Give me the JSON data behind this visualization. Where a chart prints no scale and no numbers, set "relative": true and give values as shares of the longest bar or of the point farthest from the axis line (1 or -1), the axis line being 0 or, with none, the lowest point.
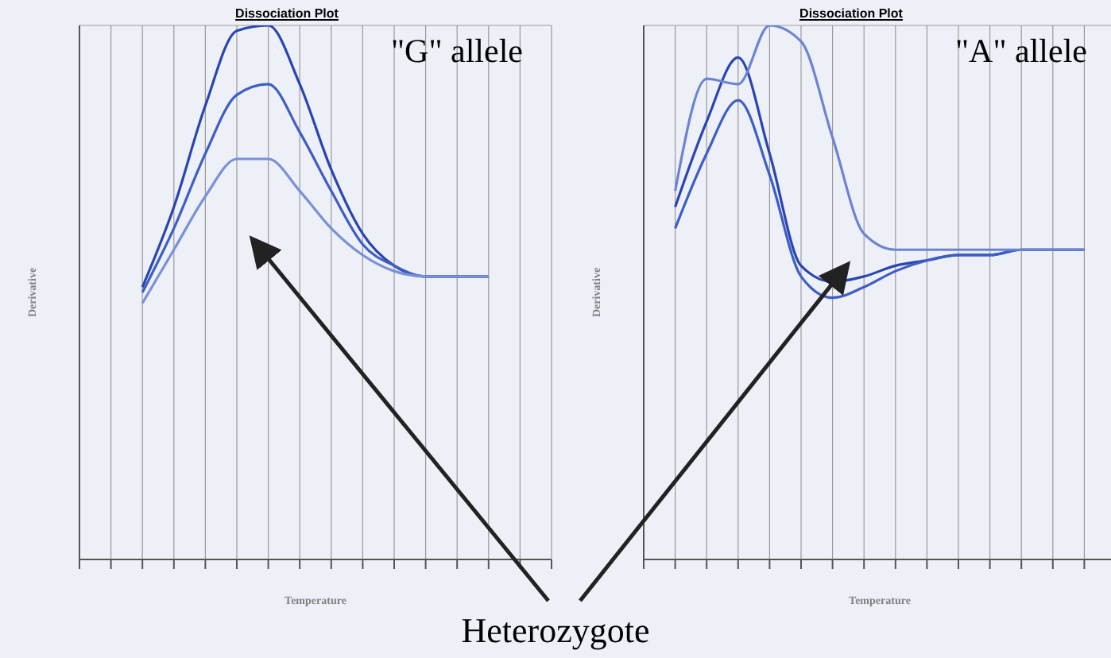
{
  "chart_data": [
    {
      "type": "line",
      "title": "Dissociation Plot",
      "xlabel": "Temperature",
      "ylabel": "Derivative",
      "annotations": [
        "\"G\" allele",
        "Heterozygote"
      ],
      "relative": true,
      "grid": true,
      "marker": "none",
      "categories": [
        null,
        null,
        null,
        null,
        null,
        null,
        null,
        null,
        null,
        null,
        null,
        null,
        null,
        null,
        null,
        null
      ],
      "series": [
        {
          "color": "#2a45b0",
          "values": [
            null,
            null,
            0.51,
            0.66,
            0.85,
            0.99,
            1,
            0.89,
            0.73,
            0.61,
            0.55,
            0.53,
            0.53,
            0.53,
            null,
            null
          ]
        },
        {
          "color": "#3d5ec4",
          "values": [
            null,
            null,
            0.5,
            0.62,
            0.76,
            0.87,
            0.89,
            0.8,
            0.69,
            0.59,
            0.55,
            0.53,
            0.53,
            0.53,
            null,
            null
          ]
        },
        {
          "color": "#7890d6",
          "values": [
            null,
            null,
            0.48,
            0.58,
            0.68,
            0.75,
            0.75,
            0.69,
            0.62,
            0.57,
            0.54,
            0.53,
            0.53,
            0.53,
            null,
            null
          ]
        }
      ]
    },
    {
      "type": "line",
      "title": "Dissociation Plot",
      "xlabel": "Temperature",
      "ylabel": "Derivative",
      "annotations": [
        "\"A\" allele"
      ],
      "relative": true,
      "grid": true,
      "marker": "none",
      "categories": [
        null,
        null,
        null,
        null,
        null,
        null,
        null,
        null,
        null,
        null,
        null,
        null,
        null,
        null,
        null,
        null
      ],
      "series": [
        {
          "color": "#2a45b0",
          "values": [
            null,
            0.66,
            0.82,
            0.94,
            0.76,
            0.55,
            0.52,
            0.53,
            0.55,
            0.56,
            0.57,
            0.57,
            0.58,
            0.58,
            0.58,
            null
          ]
        },
        {
          "color": "#3d5ec4",
          "values": [
            null,
            0.62,
            0.76,
            0.86,
            0.72,
            0.53,
            0.49,
            0.51,
            0.54,
            0.56,
            0.57,
            0.57,
            0.58,
            0.58,
            0.58,
            null
          ]
        },
        {
          "color": "#6a84d2",
          "values": [
            null,
            0.69,
            0.9,
            0.89,
            1,
            0.97,
            0.79,
            0.61,
            0.58,
            0.58,
            0.58,
            0.58,
            0.58,
            0.58,
            0.58,
            null
          ]
        }
      ]
    }
  ]
}
